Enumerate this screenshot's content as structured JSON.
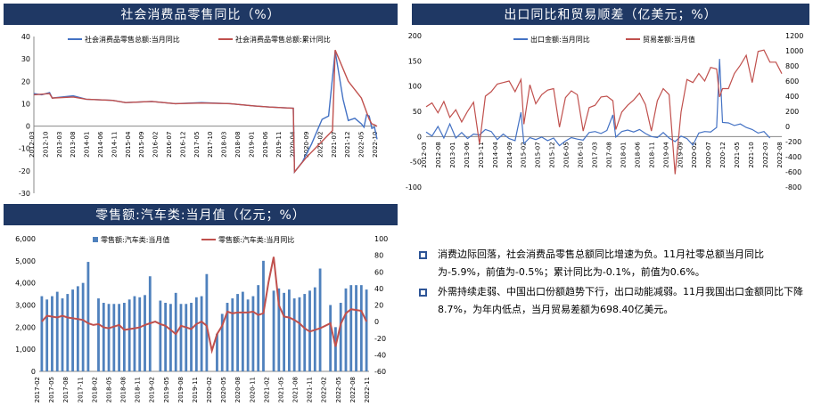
{
  "chart_data": [
    {
      "type": "line",
      "title": "社会消费品零售同比（%）",
      "x_labels": [
        "2012-03",
        "2012-10",
        "2013-03",
        "2013-08",
        "2014-01",
        "2014-06",
        "2014-11",
        "2015-04",
        "2015-09",
        "2016-02",
        "2016-07",
        "2016-12",
        "2017-05",
        "2017-10",
        "2018-03",
        "2018-08",
        "2019-01",
        "2019-06",
        "2019-11",
        "2020-04",
        "2020-09",
        "2021-02",
        "2021-07",
        "2021-12",
        "2022-05",
        "2022-10"
      ],
      "ylim": [
        -30,
        40
      ],
      "yticks": [
        -30,
        -20,
        -10,
        0,
        10,
        20,
        30,
        40
      ],
      "series": [
        {
          "name": "社会消费品零售总额:当月同比",
          "color": "#4472c4",
          "values": [
            [
              0,
              14.5
            ],
            [
              6,
              14
            ],
            [
              12,
              15
            ],
            [
              14,
              12.5
            ],
            [
              30,
              13.5
            ],
            [
              40,
              12
            ],
            [
              60,
              11.5
            ],
            [
              70,
              10.5
            ],
            [
              90,
              11
            ],
            [
              108,
              10
            ],
            [
              128,
              10.5
            ],
            [
              150,
              10
            ],
            [
              168,
              9
            ],
            [
              180,
              8.5
            ],
            [
              198,
              8
            ],
            [
              199,
              -20.5
            ],
            [
              205,
              -16
            ],
            [
              212,
              -8
            ],
            [
              220,
              3
            ],
            [
              225,
              4.5
            ],
            [
              230,
              33.5
            ],
            [
              236,
              12
            ],
            [
              240,
              2.5
            ],
            [
              245,
              3.5
            ],
            [
              250,
              1
            ],
            [
              252,
              -0.5
            ],
            [
              254,
              5
            ],
            [
              256,
              4.5
            ],
            [
              258,
              -1
            ],
            [
              260,
              -0.5
            ],
            [
              262,
              -5.9
            ]
          ]
        },
        {
          "name": "社会消费品零售总额:累计同比",
          "color": "#c0504d",
          "values": [
            [
              0,
              14
            ],
            [
              12,
              14.5
            ],
            [
              14,
              12.5
            ],
            [
              30,
              13
            ],
            [
              40,
              12
            ],
            [
              60,
              11.5
            ],
            [
              70,
              10.5
            ],
            [
              90,
              11
            ],
            [
              108,
              10
            ],
            [
              128,
              10.3
            ],
            [
              150,
              10
            ],
            [
              168,
              9
            ],
            [
              180,
              8.5
            ],
            [
              198,
              8
            ],
            [
              199,
              -20.5
            ],
            [
              208,
              -14
            ],
            [
              218,
              -8
            ],
            [
              228,
              -2
            ],
            [
              230,
              34
            ],
            [
              240,
              20
            ],
            [
              250,
              12.5
            ],
            [
              256,
              3
            ],
            [
              258,
              1
            ],
            [
              260,
              0.6
            ],
            [
              262,
              -0.1
            ]
          ]
        }
      ]
    },
    {
      "type": "line",
      "title": "出口同比和贸易顺差（亿美元；%）",
      "x_labels": [
        "2012-03",
        "2012-08",
        "2013-01",
        "2013-06",
        "2013-11",
        "2014-04",
        "2014-09",
        "2015-02",
        "2015-07",
        "2015-12",
        "2016-05",
        "2016-10",
        "2017-03",
        "2017-08",
        "2018-01",
        "2018-06",
        "2018-11",
        "2019-04",
        "2019-09",
        "2020-02",
        "2020-07",
        "2020-12",
        "2021-05",
        "2021-10",
        "2022-03",
        "2022-08"
      ],
      "ylim_left": [
        -100,
        200
      ],
      "yticks_left": [
        -100,
        -50,
        0,
        50,
        100,
        150,
        200
      ],
      "ylim_right": [
        -800,
        1200
      ],
      "yticks_right": [
        -800,
        -600,
        -400,
        -200,
        0,
        200,
        400,
        600,
        800,
        1000,
        1200
      ],
      "series": [
        {
          "name": "出口金额:当月同比",
          "color": "#4472c4",
          "axis": "left",
          "values": [
            [
              0,
              9
            ],
            [
              4,
              1
            ],
            [
              8,
              20
            ],
            [
              12,
              -3
            ],
            [
              16,
              25
            ],
            [
              20,
              -3
            ],
            [
              24,
              8
            ],
            [
              28,
              -4
            ],
            [
              32,
              5
            ],
            [
              36,
              3
            ],
            [
              40,
              14
            ],
            [
              44,
              10
            ],
            [
              48,
              -6
            ],
            [
              52,
              5
            ],
            [
              56,
              -4
            ],
            [
              60,
              -8
            ],
            [
              64,
              48
            ],
            [
              66,
              -14
            ],
            [
              70,
              -2
            ],
            [
              74,
              -6
            ],
            [
              78,
              -1
            ],
            [
              82,
              -8
            ],
            [
              86,
              -3
            ],
            [
              90,
              -18
            ],
            [
              94,
              -9
            ],
            [
              98,
              -2
            ],
            [
              102,
              -5
            ],
            [
              106,
              -7
            ],
            [
              110,
              8
            ],
            [
              114,
              10
            ],
            [
              118,
              6
            ],
            [
              122,
              12
            ],
            [
              126,
              43
            ],
            [
              128,
              -1
            ],
            [
              132,
              10
            ],
            [
              136,
              13
            ],
            [
              140,
              9
            ],
            [
              144,
              14
            ],
            [
              148,
              6
            ],
            [
              152,
              0
            ],
            [
              156,
              -2
            ],
            [
              160,
              8
            ],
            [
              164,
              -3
            ],
            [
              168,
              -10
            ],
            [
              172,
              1
            ],
            [
              176,
              -4
            ],
            [
              180,
              -17
            ],
            [
              184,
              7
            ],
            [
              188,
              10
            ],
            [
              192,
              9
            ],
            [
              196,
              18
            ],
            [
              198,
              154
            ],
            [
              200,
              28
            ],
            [
              204,
              27
            ],
            [
              208,
              22
            ],
            [
              212,
              25
            ],
            [
              216,
              18
            ],
            [
              220,
              14
            ],
            [
              224,
              7
            ],
            [
              228,
              10
            ],
            [
              232,
              -3
            ]
          ]
        },
        {
          "name": "贸易差额:当月值",
          "color": "#c0504d",
          "axis": "right",
          "values": [
            [
              0,
              260
            ],
            [
              4,
              310
            ],
            [
              8,
              180
            ],
            [
              12,
              330
            ],
            [
              16,
              120
            ],
            [
              20,
              220
            ],
            [
              24,
              60
            ],
            [
              28,
              200
            ],
            [
              32,
              320
            ],
            [
              36,
              -230
            ],
            [
              40,
              400
            ],
            [
              44,
              460
            ],
            [
              48,
              560
            ],
            [
              52,
              580
            ],
            [
              56,
              600
            ],
            [
              60,
              460
            ],
            [
              64,
              620
            ],
            [
              66,
              30
            ],
            [
              70,
              550
            ],
            [
              74,
              300
            ],
            [
              78,
              420
            ],
            [
              82,
              480
            ],
            [
              86,
              500
            ],
            [
              90,
              -10
            ],
            [
              94,
              380
            ],
            [
              98,
              470
            ],
            [
              102,
              420
            ],
            [
              106,
              -60
            ],
            [
              110,
              250
            ],
            [
              114,
              280
            ],
            [
              118,
              390
            ],
            [
              122,
              400
            ],
            [
              126,
              340
            ],
            [
              128,
              -40
            ],
            [
              132,
              190
            ],
            [
              136,
              280
            ],
            [
              140,
              350
            ],
            [
              144,
              440
            ],
            [
              148,
              290
            ],
            [
              152,
              -60
            ],
            [
              156,
              340
            ],
            [
              160,
              500
            ],
            [
              164,
              420
            ],
            [
              168,
              -630
            ],
            [
              172,
              190
            ],
            [
              176,
              620
            ],
            [
              180,
              580
            ],
            [
              184,
              700
            ],
            [
              188,
              600
            ],
            [
              192,
              780
            ],
            [
              196,
              760
            ],
            [
              198,
              390
            ],
            [
              200,
              500
            ],
            [
              204,
              500
            ],
            [
              208,
              700
            ],
            [
              212,
              810
            ],
            [
              216,
              940
            ],
            [
              220,
              580
            ],
            [
              224,
              990
            ],
            [
              228,
              1010
            ],
            [
              232,
              850
            ],
            [
              236,
              850
            ],
            [
              240,
              698
            ]
          ]
        }
      ]
    },
    {
      "type": "bar",
      "title": "零售额:汽车类:当月值（亿元；%）",
      "x_labels": [
        "2017-02",
        "2017-05",
        "2017-08",
        "2017-11",
        "2018-02",
        "2018-05",
        "2018-08",
        "2018-11",
        "2019-02",
        "2019-05",
        "2019-08",
        "2019-11",
        "2020-02",
        "2020-05",
        "2020-08",
        "2020-11",
        "2021-02",
        "2021-05",
        "2021-08",
        "2021-11",
        "2022-02",
        "2022-05",
        "2022-08",
        "2022-11"
      ],
      "ylim_left": [
        0,
        6000
      ],
      "yticks_left": [
        0,
        1000,
        2000,
        3000,
        4000,
        5000,
        6000
      ],
      "ylim_right": [
        -60,
        100
      ],
      "yticks_right": [
        -60,
        -40,
        -20,
        0,
        20,
        40,
        60,
        80,
        100
      ],
      "series": [
        {
          "name": "零售额:汽车类:当月值",
          "color": "#4f81bd",
          "axis": "left",
          "values": [
            3400,
            3250,
            3400,
            3600,
            3300,
            3500,
            3700,
            3850,
            4000,
            4950,
            0,
            3300,
            3100,
            3050,
            3050,
            3050,
            3100,
            3250,
            3400,
            3350,
            3450,
            4300,
            0,
            3200,
            3100,
            3050,
            3550,
            3050,
            3050,
            3100,
            3350,
            3400,
            4400,
            0,
            1700,
            2600,
            3100,
            3300,
            3500,
            3600,
            3250,
            3400,
            3900,
            5000,
            0,
            3650,
            3750,
            3550,
            3700,
            3300,
            3350,
            3500,
            3650,
            3800,
            4650,
            0,
            3000,
            2000,
            3100,
            3750,
            3900,
            3900,
            3900,
            3700
          ]
        },
        {
          "name": "零售额:汽车类:当月同比",
          "color": "#c0504d",
          "axis": "right",
          "values": [
            0,
            7,
            6,
            5,
            7,
            5,
            4,
            3,
            2,
            -2,
            -4,
            -3,
            -7,
            -8,
            -6,
            -4,
            -10,
            -9,
            -8,
            -7,
            -4,
            -2,
            0,
            -3,
            -5,
            -10,
            -15,
            -5,
            -7,
            -9,
            -3,
            0,
            -5,
            -35,
            -15,
            -5,
            12,
            10,
            11,
            11,
            11,
            12,
            8,
            10,
            48,
            78,
            20,
            6,
            5,
            2,
            -2,
            -8,
            -12,
            -10,
            -8,
            -5,
            -2,
            -30,
            -3,
            10,
            15,
            14,
            13,
            0
          ]
        }
      ]
    }
  ],
  "panels": {
    "retail_title": "社会消费品零售同比（%）",
    "export_title": "出口同比和贸易顺差（亿美元；%）",
    "auto_title": "零售额:汽车类:当月值（亿元；%）"
  },
  "notes": [
    {
      "text": "消费边际回落，社会消费品零售总额同比增速为负。11月社零总额当月同比为-5.9%，前值为-0.5%；累计同比为-0.1%，前值为0.6%。"
    },
    {
      "text": "外需持续走弱、中国出口份额趋势下行，出口动能减弱。11月我国出口金额同比下降8.7%，为年内低点，当月贸易差额为698.40亿美元。"
    }
  ]
}
